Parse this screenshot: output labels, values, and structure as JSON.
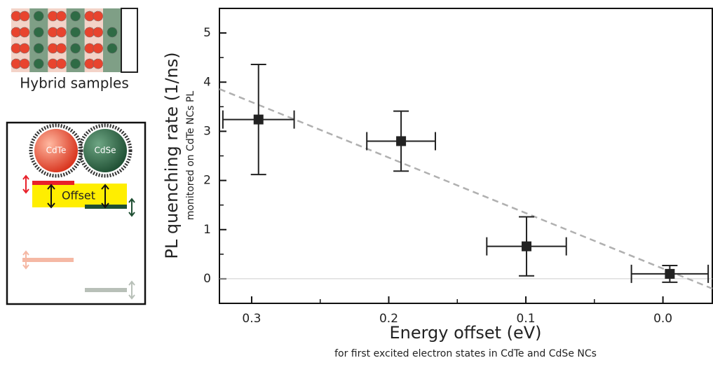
{
  "diagram": {
    "sample_label": "Hybrid samples",
    "nc_labels": [
      "CdTe",
      "CdSe"
    ],
    "offset_label": "Offset"
  },
  "chart_data": {
    "type": "scatter",
    "xlabel": "Energy offset (eV)",
    "xlabel_note": "for first excited electron states in CdTe and CdSe NCs",
    "ylabel": "PL quenching rate (1/ns)",
    "ylabel_note": "monitored on CdTe NCs PL",
    "xlim": [
      0.3235,
      -0.036
    ],
    "ylim": [
      -0.5,
      5.5
    ],
    "xticks": [
      0.3,
      0.2,
      0.1,
      {
        "value": 0,
        "label": "0.0"
      }
    ],
    "xminor_ticks": [
      0.25,
      0.15,
      0.05
    ],
    "yticks": [
      0,
      1,
      2,
      3,
      4,
      5
    ],
    "yminor_ticks": [
      -0.5,
      0.5,
      1.5,
      2.5,
      3.5,
      4.5
    ],
    "zero_line": true,
    "series": [
      {
        "color": "#222",
        "x": [
          0.295,
          0.191,
          0.0995,
          -0.005
        ],
        "values": [
          3.24,
          2.8,
          0.66,
          0.1
        ],
        "yerr": [
          1.12,
          0.61,
          0.6,
          0.17
        ],
        "xerr": [
          0.026,
          0.025,
          0.029,
          0.028
        ]
      }
    ],
    "trend_line": {
      "x": [
        0.3235,
        -0.036
      ],
      "y": [
        3.86,
        -0.2
      ],
      "color": "#b0b0b0"
    }
  }
}
